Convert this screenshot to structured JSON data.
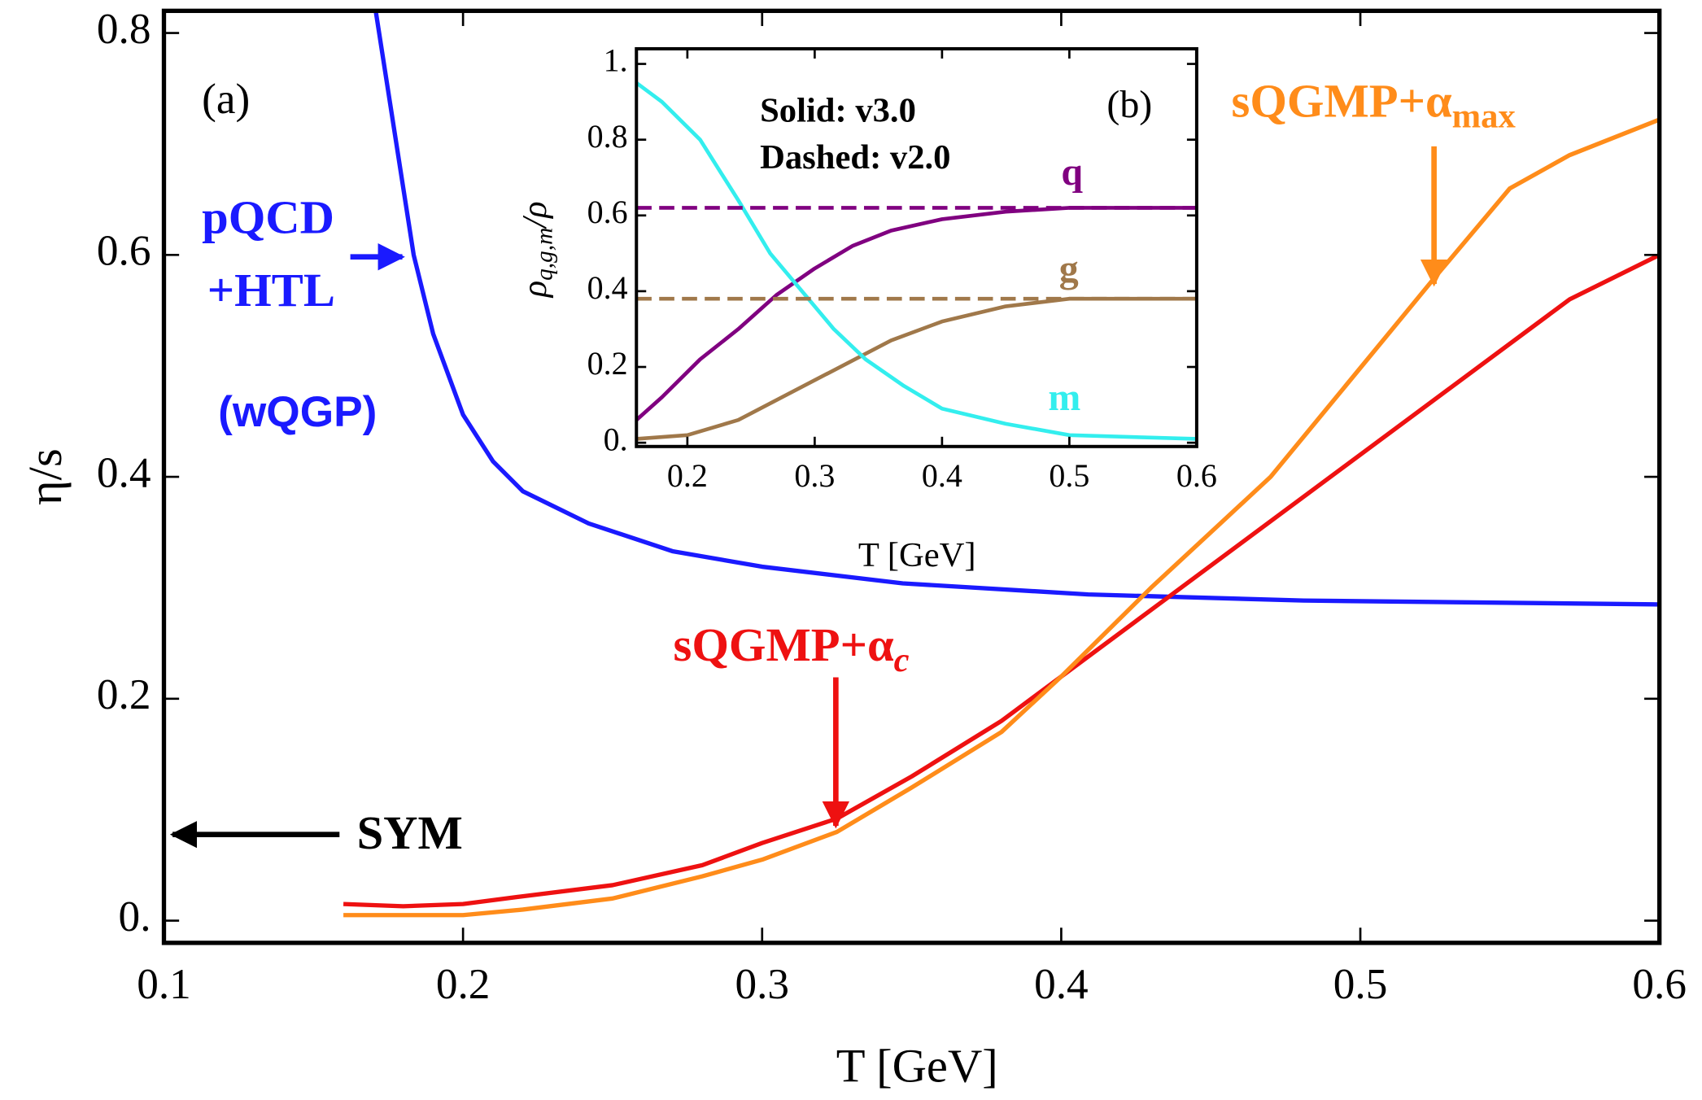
{
  "chart_data": [
    {
      "type": "line",
      "xlabel": "T [GeV]",
      "ylabel": "η/s",
      "xlim": [
        0.1,
        0.6
      ],
      "ylim": [
        -0.02,
        0.82
      ],
      "xticks": [
        0.1,
        0.2,
        0.3,
        0.4,
        0.5,
        0.6
      ],
      "yticks": [
        {
          "value": 0,
          "label": "0."
        },
        0.2,
        0.4,
        0.6,
        0.8
      ],
      "annotations": {
        "panel": "(a)",
        "pqcd": "pQCD",
        "htl": "+HTL",
        "wqgp": "(wQGP)",
        "sym": "SYM",
        "alpha_c": {
          "text": "sQGMP+α",
          "sub": "c"
        },
        "alpha_max": {
          "text": "sQGMP+α",
          "sub": "max"
        }
      },
      "series": [
        {
          "color": "#1a1aff",
          "x": [
            0.1708,
            0.1835,
            0.19,
            0.2,
            0.21,
            0.22,
            0.242,
            0.27,
            0.3,
            0.347,
            0.409,
            0.481,
            0.6
          ],
          "values": [
            0.82,
            0.6,
            0.529,
            0.456,
            0.414,
            0.387,
            0.358,
            0.333,
            0.319,
            0.304,
            0.294,
            0.2885,
            0.285
          ]
        },
        {
          "color": "#ee1111",
          "x": [
            0.16,
            0.18,
            0.2,
            0.22,
            0.25,
            0.28,
            0.3,
            0.325,
            0.35,
            0.38,
            0.4,
            0.435,
            0.48,
            0.53,
            0.57,
            0.6
          ],
          "values": [
            0.015,
            0.013,
            0.015,
            0.022,
            0.032,
            0.05,
            0.07,
            0.092,
            0.13,
            0.18,
            0.22,
            0.29,
            0.38,
            0.48,
            0.56,
            0.6
          ]
        },
        {
          "color": "#ff8c1a",
          "x": [
            0.16,
            0.2,
            0.22,
            0.25,
            0.28,
            0.3,
            0.325,
            0.35,
            0.38,
            0.4,
            0.43,
            0.47,
            0.525,
            0.55,
            0.57,
            0.6
          ],
          "values": [
            0.005,
            0.005,
            0.01,
            0.02,
            0.04,
            0.055,
            0.08,
            0.12,
            0.17,
            0.22,
            0.3,
            0.4,
            0.58,
            0.66,
            0.69,
            0.722
          ]
        }
      ]
    },
    {
      "type": "line",
      "xlabel": "T [GeV]",
      "ylabel": {
        "text": "ρ",
        "sub": "q,g,m",
        "rest": "/ρ"
      },
      "xlim": [
        0.16,
        0.6
      ],
      "ylim": [
        -0.01,
        1.04
      ],
      "xticks": [
        0.2,
        0.3,
        0.4,
        0.5,
        0.6
      ],
      "yticks": [
        {
          "value": 0,
          "label": "0."
        },
        0.2,
        0.4,
        0.6,
        0.8,
        {
          "value": 1,
          "label": "1."
        }
      ],
      "annotations": {
        "panel": "(b)",
        "solid": "Solid: v3.0",
        "dashed": "Dashed: v2.0"
      },
      "series": [
        {
          "name": "q",
          "color": "#800080",
          "x": [
            0.16,
            0.18,
            0.21,
            0.24,
            0.27,
            0.3,
            0.33,
            0.36,
            0.4,
            0.45,
            0.5,
            0.6
          ],
          "values": [
            0.06,
            0.12,
            0.22,
            0.3,
            0.39,
            0.46,
            0.52,
            0.56,
            0.59,
            0.61,
            0.62,
            0.62
          ]
        },
        {
          "name": "g",
          "color": "#a0784a",
          "x": [
            0.16,
            0.2,
            0.24,
            0.28,
            0.32,
            0.36,
            0.4,
            0.45,
            0.5,
            0.6
          ],
          "values": [
            0.01,
            0.02,
            0.06,
            0.13,
            0.2,
            0.27,
            0.32,
            0.36,
            0.38,
            0.38
          ]
        },
        {
          "name": "m",
          "color": "#33eeee",
          "x": [
            0.16,
            0.18,
            0.21,
            0.24,
            0.265,
            0.29,
            0.315,
            0.34,
            0.37,
            0.4,
            0.45,
            0.5,
            0.6
          ],
          "values": [
            0.95,
            0.9,
            0.8,
            0.64,
            0.5,
            0.4,
            0.3,
            0.22,
            0.15,
            0.09,
            0.05,
            0.02,
            0.01
          ]
        },
        {
          "color": "#800080",
          "dashed": true,
          "x": [
            0.16,
            0.6
          ],
          "values": [
            0.62,
            0.62
          ]
        },
        {
          "color": "#a0784a",
          "dashed": true,
          "x": [
            0.16,
            0.6
          ],
          "values": [
            0.38,
            0.38
          ]
        }
      ]
    }
  ]
}
